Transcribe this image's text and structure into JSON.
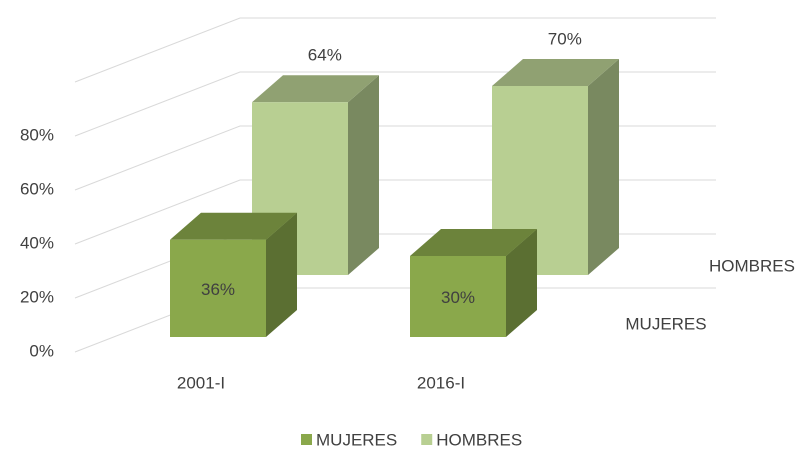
{
  "chart_data": {
    "type": "bar3d",
    "categories": [
      "2001-I",
      "2016-I"
    ],
    "series": [
      {
        "name": "MUJERES",
        "color": "#8aa84b",
        "values": [
          36,
          30
        ],
        "value_labels": [
          "36%",
          "30%"
        ]
      },
      {
        "name": "HOMBRES",
        "color": "#b8cf92",
        "values": [
          64,
          70
        ],
        "value_labels": [
          "64%",
          "70%"
        ]
      }
    ],
    "ylim": [
      0,
      100
    ],
    "yticks": [
      {
        "value": 0,
        "label": "0%"
      },
      {
        "value": 20,
        "label": "20%"
      },
      {
        "value": 40,
        "label": "40%"
      },
      {
        "value": 60,
        "label": "60%"
      },
      {
        "value": 80,
        "label": "80%"
      }
    ],
    "grid": true,
    "legend": "bottom"
  }
}
